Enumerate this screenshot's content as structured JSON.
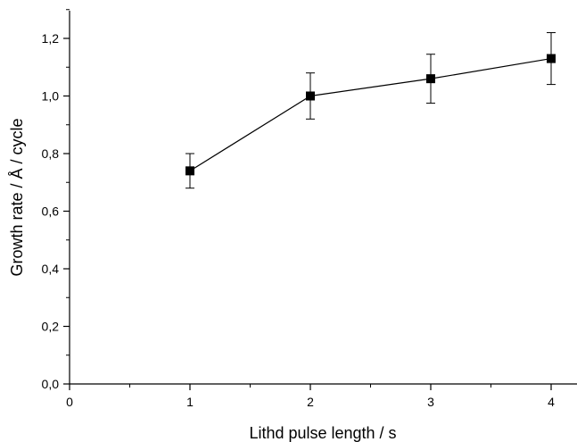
{
  "chart_data": {
    "type": "scatter",
    "title": "",
    "xlabel": "Lithd pulse length / s",
    "ylabel": "Growth rate / Å / cycle",
    "xlim": [
      0,
      4.4
    ],
    "ylim": [
      0,
      1.3
    ],
    "x_ticks": [
      0,
      1,
      2,
      3,
      4
    ],
    "x_tick_labels": [
      "0",
      "1",
      "2",
      "3",
      "4"
    ],
    "y_ticks": [
      0.0,
      0.2,
      0.4,
      0.6,
      0.8,
      1.0,
      1.2
    ],
    "y_tick_labels": [
      "0,0",
      "0,2",
      "0,4",
      "0,6",
      "0,8",
      "1,0",
      "1,2"
    ],
    "grid": false,
    "legend": "none",
    "series": [
      {
        "x": [
          1,
          2,
          3,
          4
        ],
        "y": [
          0.74,
          1.0,
          1.06,
          1.13
        ],
        "error": [
          0.06,
          0.08,
          0.085,
          0.09
        ],
        "marker": "square",
        "line": "solid",
        "color": "#000000"
      }
    ]
  }
}
